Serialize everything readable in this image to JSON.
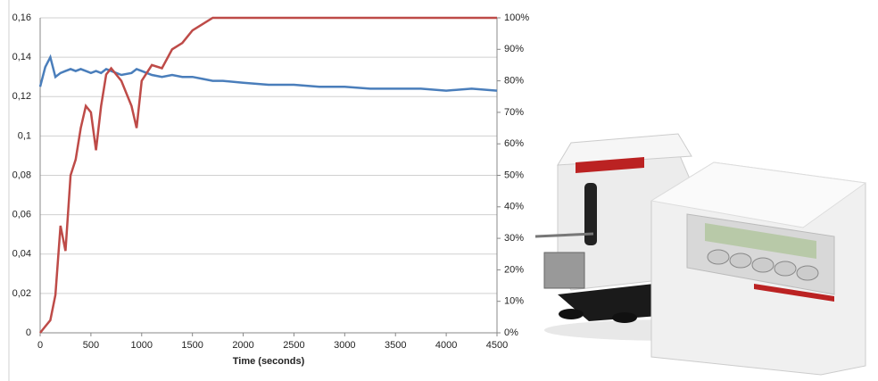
{
  "chart_data": {
    "type": "line",
    "x_label": "Time (seconds)",
    "x": [
      0,
      50,
      100,
      150,
      200,
      250,
      300,
      350,
      400,
      450,
      500,
      550,
      600,
      650,
      700,
      800,
      900,
      950,
      1000,
      1100,
      1200,
      1300,
      1400,
      1500,
      1600,
      1700,
      1800,
      2000,
      2250,
      2500,
      2750,
      3000,
      3250,
      3500,
      3750,
      4000,
      4250,
      4500
    ],
    "series": [
      {
        "color": "#4a7ebb",
        "values": [
          0.125,
          0.135,
          0.14,
          0.13,
          0.132,
          0.133,
          0.134,
          0.133,
          0.134,
          0.133,
          0.132,
          0.133,
          0.132,
          0.134,
          0.133,
          0.131,
          0.132,
          0.134,
          0.133,
          0.131,
          0.13,
          0.131,
          0.13,
          0.13,
          0.129,
          0.128,
          0.128,
          0.127,
          0.126,
          0.126,
          0.125,
          0.125,
          0.124,
          0.124,
          0.124,
          0.123,
          0.124,
          0.123
        ]
      },
      {
        "color": "#be4b48",
        "axis": "y2",
        "values": [
          0,
          2,
          4,
          12,
          34,
          26,
          50,
          55,
          65,
          72,
          70,
          58,
          72,
          82,
          84,
          80,
          72,
          65,
          80,
          85,
          84,
          90,
          92,
          96,
          98,
          100,
          100,
          100,
          100,
          100,
          100,
          100,
          100,
          100,
          100,
          100,
          100,
          100
        ]
      }
    ],
    "xlim": [
      0,
      4500
    ],
    "xticks": [
      0,
      500,
      1000,
      1500,
      2000,
      2500,
      3000,
      3500,
      4000,
      4500
    ],
    "ylim": [
      0,
      0.16
    ],
    "yticks": [
      0,
      {
        "value": 0.02,
        "label": "0,02"
      },
      {
        "value": 0.04,
        "label": "0,04"
      },
      {
        "value": 0.06,
        "label": "0,06"
      },
      {
        "value": 0.08,
        "label": "0,08"
      },
      {
        "value": 0.1,
        "label": "0,1"
      },
      {
        "value": 0.12,
        "label": "0,12"
      },
      {
        "value": 0.14,
        "label": "0,14"
      },
      {
        "value": 0.16,
        "label": "0,16"
      }
    ],
    "y2lim": [
      0,
      100
    ],
    "y2ticks": [
      {
        "value": 0,
        "label": "0%"
      },
      {
        "value": 10,
        "label": "10%"
      },
      {
        "value": 20,
        "label": "20%"
      },
      {
        "value": 30,
        "label": "30%"
      },
      {
        "value": 40,
        "label": "40%"
      },
      {
        "value": 50,
        "label": "50%"
      },
      {
        "value": 60,
        "label": "60%"
      },
      {
        "value": 70,
        "label": "70%"
      },
      {
        "value": 80,
        "label": "80%"
      },
      {
        "value": 90,
        "label": "90%"
      },
      {
        "value": 100,
        "label": "100%"
      }
    ],
    "grid": true
  }
}
